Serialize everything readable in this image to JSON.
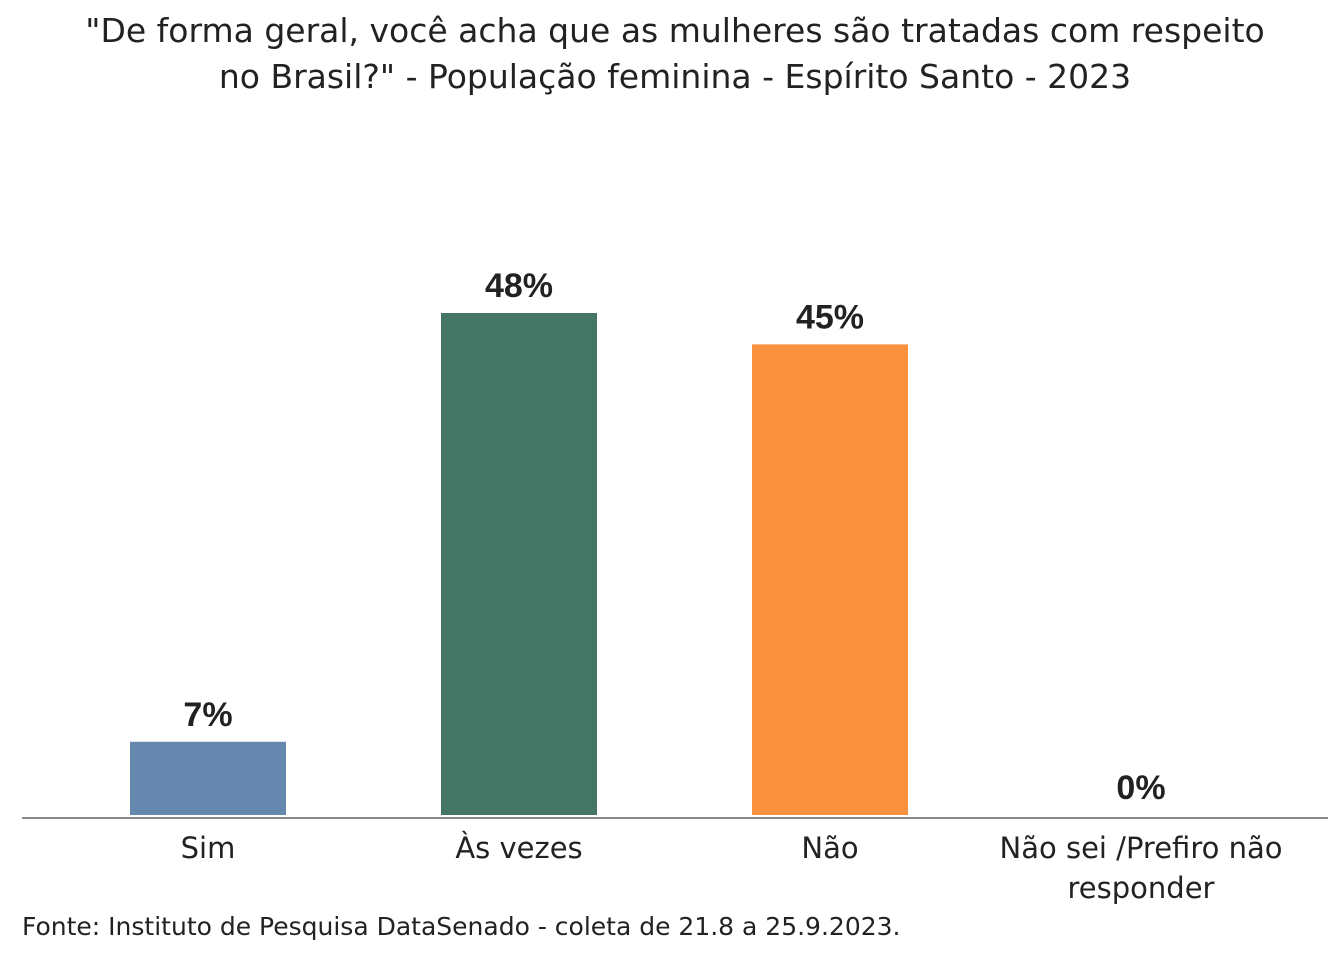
{
  "chart_data": {
    "type": "bar",
    "title": "\"De forma geral, você acha que as mulheres são tratadas com respeito no Brasil?\" - População feminina - Espírito Santo - 2023",
    "categories": [
      [
        "Sim"
      ],
      [
        "Às vezes"
      ],
      [
        "Não"
      ],
      [
        "Não sei /Prefiro não",
        "responder"
      ]
    ],
    "values": [
      7,
      48,
      45,
      0
    ],
    "value_labels": [
      "7%",
      "48%",
      "45%",
      "0%"
    ],
    "unit": "%",
    "colors": [
      "#6687AE",
      "#457564",
      "#F9913F",
      "#999999"
    ],
    "ylim": [
      0,
      48
    ],
    "grid": false,
    "legend": "none",
    "xlabel": "",
    "ylabel": ""
  },
  "source": "Fonte: Instituto de Pesquisa DataSenado - coleta de 21.8 a 25.9.2023."
}
